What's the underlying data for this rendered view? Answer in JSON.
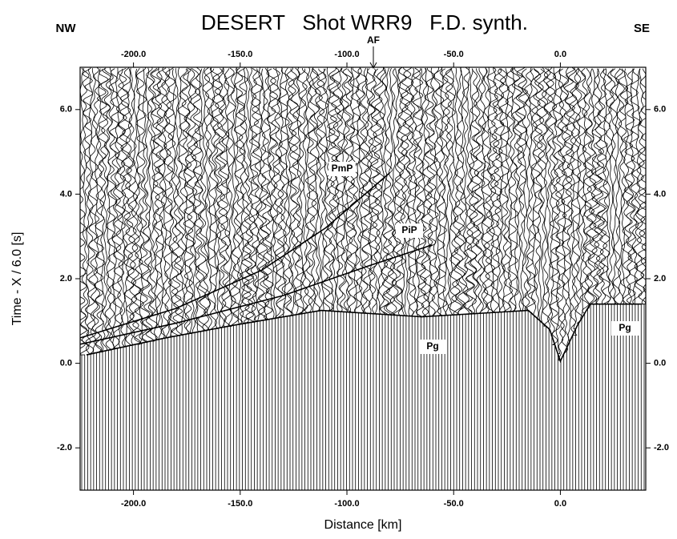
{
  "chart_data": {
    "type": "record-section",
    "title": "DESERT   Shot WRR9   F.D. synth.",
    "x_label": "Distance [km]",
    "y_label": "Time - X / 6.0 [s]",
    "left_label": "NW",
    "right_label": "SE",
    "fault_label": "AF",
    "xlim": [
      -225,
      40
    ],
    "ylim": [
      -3,
      7
    ],
    "xticks": [
      {
        "value": -200,
        "label": "-200.0"
      },
      {
        "value": -150,
        "label": "-150.0"
      },
      {
        "value": -100,
        "label": "-100.0"
      },
      {
        "value": -50,
        "label": "-50.0"
      },
      {
        "value": 0,
        "label": "0.0"
      }
    ],
    "yticks": [
      {
        "value": -2,
        "label": "-2.0"
      },
      {
        "value": 0,
        "label": "0.0"
      },
      {
        "value": 2,
        "label": "2.0"
      },
      {
        "value": 4,
        "label": "4.0"
      },
      {
        "value": 6,
        "label": "6.0"
      }
    ],
    "series": [
      {
        "name": "Pg",
        "color": "#000000",
        "x": [
          -222,
          -185,
          -153,
          -112,
          -65,
          -15,
          -5,
          0,
          8,
          14,
          38
        ],
        "values": [
          0.2,
          0.6,
          0.9,
          1.25,
          1.1,
          1.25,
          0.8,
          0.05,
          0.9,
          1.4,
          1.4
        ]
      },
      {
        "name": "PiP",
        "color": "#000000",
        "x": [
          -225,
          -180,
          -130,
          -90,
          -60
        ],
        "values": [
          0.45,
          0.95,
          1.6,
          2.3,
          2.8
        ]
      },
      {
        "name": "PmP",
        "color": "#000000",
        "x": [
          -225,
          -180,
          -140,
          -110,
          -80
        ],
        "values": [
          0.6,
          1.3,
          2.2,
          3.2,
          4.5
        ]
      }
    ],
    "annotations": [
      "PmP",
      "PiP",
      "Pg",
      "Pg"
    ]
  }
}
